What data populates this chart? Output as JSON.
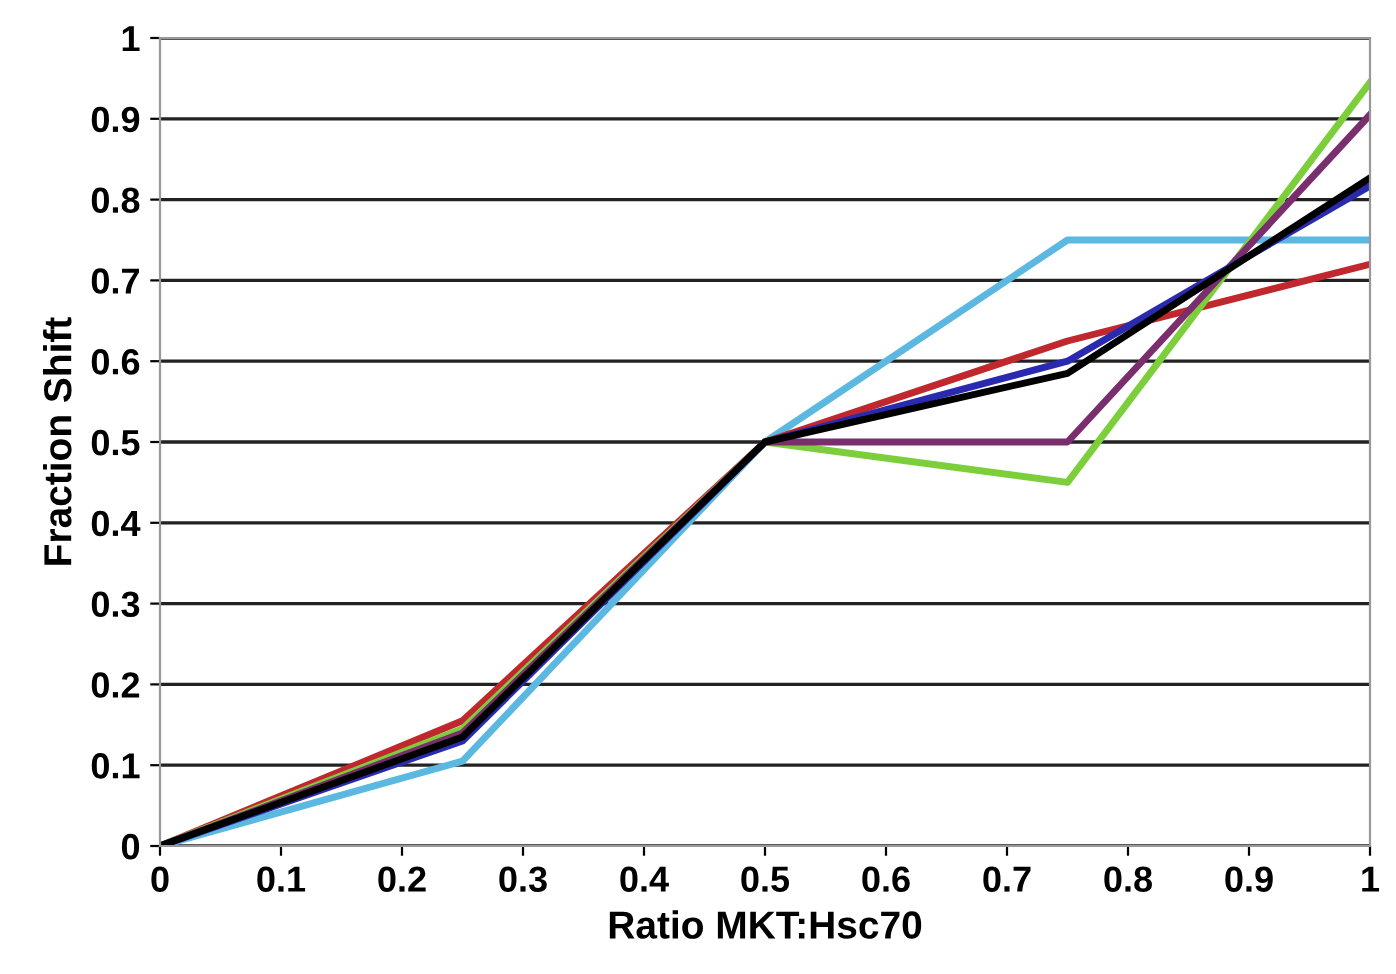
{
  "chart_data": {
    "type": "line",
    "xlabel": "Ratio MKT:Hsc70",
    "ylabel": "Fraction Shift",
    "x": [
      0,
      0.25,
      0.5,
      0.75,
      1
    ],
    "series": [
      {
        "color": "#5bb8e0",
        "values": [
          0,
          0.105,
          0.5,
          0.75,
          0.75
        ]
      },
      {
        "color": "#c0282d",
        "values": [
          0,
          0.155,
          0.5,
          0.625,
          0.72
        ]
      },
      {
        "color": "#7ccf3a",
        "values": [
          0,
          0.145,
          0.5,
          0.45,
          0.945
        ]
      },
      {
        "color": "#7a2e6e",
        "values": [
          0,
          0.14,
          0.5,
          0.5,
          0.905
        ]
      },
      {
        "color": "#2a2ab0",
        "values": [
          0,
          0.13,
          0.5,
          0.6,
          0.817
        ]
      },
      {
        "color": "#000000",
        "values": [
          0,
          0.135,
          0.5,
          0.585,
          0.827
        ]
      }
    ],
    "xlim": [
      0,
      1
    ],
    "ylim": [
      0,
      1
    ],
    "xticks": [
      0,
      0.1,
      0.2,
      0.3,
      0.4,
      0.5,
      0.6,
      0.7,
      0.8,
      0.9,
      1
    ],
    "yticks": [
      0,
      0.1,
      0.2,
      0.3,
      0.4,
      0.5,
      0.6,
      0.7,
      0.8,
      0.9,
      1
    ],
    "grid": "y",
    "marker": "none",
    "line_style": "solid",
    "legend": false
  }
}
